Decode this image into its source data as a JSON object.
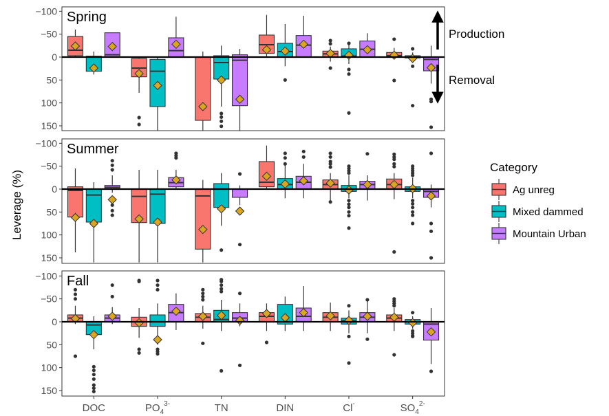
{
  "chart_data": {
    "type": "boxplot",
    "ylabel": "Leverage (%)",
    "y_reversed": true,
    "yticks": [
      -100,
      -50,
      0,
      50,
      100,
      150
    ],
    "ylim": [
      -110,
      160
    ],
    "categories": [
      "DOC",
      "PO",
      "TN",
      "DIN",
      "Cl",
      "SO"
    ],
    "category_labels": [
      {
        "base": "DOC",
        "sub": "",
        "sup": ""
      },
      {
        "base": "PO",
        "sub": "4",
        "sup": "3-"
      },
      {
        "base": "TN",
        "sub": "",
        "sup": ""
      },
      {
        "base": "DIN",
        "sub": "",
        "sup": ""
      },
      {
        "base": "Cl",
        "sub": "",
        "sup": "-"
      },
      {
        "base": "SO",
        "sub": "4",
        "sup": "2-"
      }
    ],
    "legend": {
      "title": "Category",
      "placement": "right",
      "items": [
        {
          "name": "Ag unreg",
          "color": "#F8766D"
        },
        {
          "name": "Mixed dammed",
          "color": "#00BFC4"
        },
        {
          "name": "Mountain Urban",
          "color": "#C77CFF"
        }
      ]
    },
    "annotations": {
      "production": "Production",
      "removal": "Removal"
    },
    "mean_marker_color": "#DAA520",
    "panels": [
      {
        "season": "Spring",
        "boxes": [
          {
            "category": "DOC",
            "group": "Ag unreg",
            "q1": -45,
            "median": -15,
            "q3": -3,
            "whisker_low": -60,
            "whisker_high": 0,
            "mean": -24,
            "outliers": []
          },
          {
            "category": "DOC",
            "group": "Mixed dammed",
            "q1": -2,
            "median": 0,
            "q3": 31,
            "whisker_low": -12,
            "whisker_high": 38,
            "mean": 24,
            "outliers": []
          },
          {
            "category": "DOC",
            "group": "Mountain Urban",
            "q1": -53,
            "median": -5,
            "q3": 0,
            "whisker_low": -53,
            "whisker_high": 0,
            "mean": -23,
            "outliers": []
          },
          {
            "category": "PO",
            "group": "Ag unreg",
            "q1": 3,
            "median": 24,
            "q3": 43,
            "whisker_low": 0,
            "whisker_high": 78,
            "mean": 36,
            "outliers": [
              132,
              147
            ]
          },
          {
            "category": "PO",
            "group": "Mixed dammed",
            "q1": 5,
            "median": 31,
            "q3": 108,
            "whisker_low": 0,
            "whisker_high": 160,
            "mean": 62,
            "outliers": []
          },
          {
            "category": "PO",
            "group": "Mountain Urban",
            "q1": -42,
            "median": -14,
            "q3": 0,
            "whisker_low": -88,
            "whisker_high": 0,
            "mean": -28,
            "outliers": []
          },
          {
            "category": "TN",
            "group": "Ag unreg",
            "q1": 0,
            "median": 0,
            "q3": 138,
            "whisker_low": -12,
            "whisker_high": 160,
            "mean": 108,
            "outliers": []
          },
          {
            "category": "TN",
            "group": "Mixed dammed",
            "q1": -3,
            "median": 12,
            "q3": 48,
            "whisker_low": -25,
            "whisker_high": 108,
            "mean": 50,
            "outliers": [
              123,
              131,
              140,
              151
            ]
          },
          {
            "category": "TN",
            "group": "Mountain Urban",
            "q1": -5,
            "median": 7,
            "q3": 106,
            "whisker_low": -18,
            "whisker_high": 160,
            "mean": 92,
            "outliers": []
          },
          {
            "category": "DIN",
            "group": "Ag unreg",
            "q1": -48,
            "median": -27,
            "q3": -8,
            "whisker_low": -92,
            "whisker_high": 0,
            "mean": -16,
            "outliers": []
          },
          {
            "category": "DIN",
            "group": "Mixed dammed",
            "q1": -30,
            "median": -12,
            "q3": 0,
            "whisker_low": -72,
            "whisker_high": 20,
            "mean": -13,
            "outliers": [
              50
            ]
          },
          {
            "category": "DIN",
            "group": "Mountain Urban",
            "q1": -47,
            "median": -26,
            "q3": 0,
            "whisker_low": -90,
            "whisker_high": 0,
            "mean": -28,
            "outliers": []
          },
          {
            "category": "Cl",
            "group": "Ag unreg",
            "q1": -13,
            "median": -7,
            "q3": 0,
            "whisker_low": -23,
            "whisker_high": 10,
            "mean": -8,
            "outliers": [
              -36,
              -29,
              24
            ]
          },
          {
            "category": "Cl",
            "group": "Mixed dammed",
            "q1": -18,
            "median": -2,
            "q3": 0,
            "whisker_low": -28,
            "whisker_high": 15,
            "mean": -4,
            "outliers": [
              -30,
              27,
              37,
              122
            ]
          },
          {
            "category": "Cl",
            "group": "Mountain Urban",
            "q1": -35,
            "median": -17,
            "q3": 0,
            "whisker_low": -52,
            "whisker_high": 0,
            "mean": -16,
            "outliers": []
          },
          {
            "category": "SO",
            "group": "Ag unreg",
            "q1": -10,
            "median": -3,
            "q3": 0,
            "whisker_low": -20,
            "whisker_high": 5,
            "mean": -4,
            "outliers": [
              -39,
              51
            ]
          },
          {
            "category": "SO",
            "group": "Mixed dammed",
            "q1": -3,
            "median": 0,
            "q3": 2,
            "whisker_low": -10,
            "whisker_high": 12,
            "mean": 3,
            "outliers": [
              -18,
              20,
              106
            ]
          },
          {
            "category": "SO",
            "group": "Mountain Urban",
            "q1": 0,
            "median": 5,
            "q3": 30,
            "whisker_low": -25,
            "whisker_high": 58,
            "mean": 23,
            "outliers": [
              92,
              97,
              153
            ]
          }
        ]
      },
      {
        "season": "Summer",
        "boxes": [
          {
            "category": "DOC",
            "group": "Ag unreg",
            "q1": -5,
            "median": 3,
            "q3": 61,
            "whisker_low": -45,
            "whisker_high": 138,
            "mean": 62,
            "outliers": []
          },
          {
            "category": "DOC",
            "group": "Mixed dammed",
            "q1": 0,
            "median": 13,
            "q3": 72,
            "whisker_low": -15,
            "whisker_high": 160,
            "mean": 75,
            "outliers": []
          },
          {
            "category": "DOC",
            "group": "Mountain Urban",
            "q1": -8,
            "median": -4,
            "q3": 0,
            "whisker_low": -30,
            "whisker_high": 8,
            "mean": 23,
            "outliers": [
              -62,
              -52,
              -42,
              25,
              35,
              47,
              57
            ]
          },
          {
            "category": "PO",
            "group": "Ag unreg",
            "q1": 0,
            "median": 16,
            "q3": 73,
            "whisker_low": -42,
            "whisker_high": 160,
            "mean": 65,
            "outliers": []
          },
          {
            "category": "PO",
            "group": "Mixed dammed",
            "q1": 0,
            "median": 11,
            "q3": 75,
            "whisker_low": -42,
            "whisker_high": 160,
            "mean": 72,
            "outliers": []
          },
          {
            "category": "PO",
            "group": "Mountain Urban",
            "q1": -25,
            "median": -14,
            "q3": -5,
            "whisker_low": -42,
            "whisker_high": 0,
            "mean": -20,
            "outliers": [
              -78,
              -73,
              -68
            ]
          },
          {
            "category": "TN",
            "group": "Ag unreg",
            "q1": 0,
            "median": 15,
            "q3": 131,
            "whisker_low": -20,
            "whisker_high": 160,
            "mean": 88,
            "outliers": []
          },
          {
            "category": "TN",
            "group": "Mixed dammed",
            "q1": -12,
            "median": 0,
            "q3": 40,
            "whisker_low": -35,
            "whisker_high": 80,
            "mean": 43,
            "outliers": [
              133
            ]
          },
          {
            "category": "TN",
            "group": "Mountain Urban",
            "q1": 0,
            "median": 0,
            "q3": 18,
            "whisker_low": -8,
            "whisker_high": 35,
            "mean": 48,
            "outliers": [
              -33,
              121
            ]
          },
          {
            "category": "DIN",
            "group": "Ag unreg",
            "q1": -60,
            "median": -15,
            "q3": -5,
            "whisker_low": -95,
            "whisker_high": 0,
            "mean": -28,
            "outliers": []
          },
          {
            "category": "DIN",
            "group": "Mixed dammed",
            "q1": -23,
            "median": -10,
            "q3": 0,
            "whisker_low": -55,
            "whisker_high": 20,
            "mean": -11,
            "outliers": [
              -78,
              -68,
              -55
            ]
          },
          {
            "category": "DIN",
            "group": "Mountain Urban",
            "q1": -28,
            "median": -15,
            "q3": 0,
            "whisker_low": -55,
            "whisker_high": 20,
            "mean": -18,
            "outliers": [
              -82,
              -70
            ]
          },
          {
            "category": "Cl",
            "group": "Ag unreg",
            "q1": -20,
            "median": -10,
            "q3": 0,
            "whisker_low": -35,
            "whisker_high": 25,
            "mean": -13,
            "outliers": [
              -78,
              -70,
              -60,
              -55,
              -48,
              28
            ]
          },
          {
            "category": "Cl",
            "group": "Mixed dammed",
            "q1": -8,
            "median": 0,
            "q3": 5,
            "whisker_low": -30,
            "whisker_high": 20,
            "mean": 2,
            "outliers": [
              -50,
              -45,
              -40,
              -35,
              25,
              33,
              40,
              50,
              58,
              85
            ]
          },
          {
            "category": "Cl",
            "group": "Mountain Urban",
            "q1": -17,
            "median": -10,
            "q3": 0,
            "whisker_low": -30,
            "whisker_high": 25,
            "mean": -10,
            "outliers": [
              -77
            ]
          },
          {
            "category": "SO",
            "group": "Ag unreg",
            "q1": -22,
            "median": -10,
            "q3": 0,
            "whisker_low": -35,
            "whisker_high": 22,
            "mean": -10,
            "outliers": [
              -76,
              -70,
              -65,
              -55,
              -49,
              137
            ]
          },
          {
            "category": "SO",
            "group": "Mixed dammed",
            "q1": -5,
            "median": 0,
            "q3": 5,
            "whisker_low": -25,
            "whisker_high": 20,
            "mean": -1,
            "outliers": [
              -50,
              -45,
              -40,
              -35,
              -30,
              25,
              32,
              40,
              50,
              57,
              75
            ]
          },
          {
            "category": "SO",
            "group": "Mountain Urban",
            "q1": 0,
            "median": 5,
            "q3": 18,
            "whisker_low": -10,
            "whisker_high": 40,
            "mean": 15,
            "outliers": [
              -78,
              75,
              92,
              150
            ]
          }
        ]
      },
      {
        "season": "Fall",
        "boxes": [
          {
            "category": "DOC",
            "group": "Ag unreg",
            "q1": -15,
            "median": -8,
            "q3": 0,
            "whisker_low": -35,
            "whisker_high": 5,
            "mean": -7,
            "outliers": [
              -70,
              -60,
              -50,
              75
            ]
          },
          {
            "category": "DOC",
            "group": "Mixed dammed",
            "q1": 0,
            "median": 7,
            "q3": 28,
            "whisker_low": -12,
            "whisker_high": 60,
            "mean": 28,
            "outliers": [
              98,
              106,
              115,
              125,
              138,
              145,
              152
            ]
          },
          {
            "category": "DOC",
            "group": "Mountain Urban",
            "q1": -15,
            "median": -8,
            "q3": 0,
            "whisker_low": -32,
            "whisker_high": 5,
            "mean": -12,
            "outliers": [
              -80,
              -55
            ]
          },
          {
            "category": "PO",
            "group": "Ag unreg",
            "q1": -10,
            "median": 0,
            "q3": 10,
            "whisker_low": -30,
            "whisker_high": 35,
            "mean": 2,
            "outliers": [
              -90,
              -88,
              60,
              68
            ]
          },
          {
            "category": "PO",
            "group": "Mixed dammed",
            "q1": -15,
            "median": 0,
            "q3": 10,
            "whisker_low": -40,
            "whisker_high": 50,
            "mean": 39,
            "outliers": [
              -90,
              -80,
              -70,
              60,
              65,
              70
            ]
          },
          {
            "category": "PO",
            "group": "Mountain Urban",
            "q1": -38,
            "median": -20,
            "q3": 0,
            "whisker_low": -62,
            "whisker_high": 18,
            "mean": -23,
            "outliers": []
          },
          {
            "category": "TN",
            "group": "Ag unreg",
            "q1": -18,
            "median": -10,
            "q3": 0,
            "whisker_low": -35,
            "whisker_high": 15,
            "mean": -12,
            "outliers": [
              -70,
              -62,
              -55,
              -48,
              47
            ]
          },
          {
            "category": "TN",
            "group": "Mixed dammed",
            "q1": -25,
            "median": -5,
            "q3": 0,
            "whisker_low": -48,
            "whisker_high": 20,
            "mean": -14,
            "outliers": [
              -92,
              -88,
              -80,
              -72,
              -66,
              107
            ]
          },
          {
            "category": "TN",
            "group": "Mountain Urban",
            "q1": -20,
            "median": -8,
            "q3": 0,
            "whisker_low": -40,
            "whisker_high": 10,
            "mean": -3,
            "outliers": [
              -62,
              95
            ]
          },
          {
            "category": "DIN",
            "group": "Ag unreg",
            "q1": -20,
            "median": -12,
            "q3": 0,
            "whisker_low": -40,
            "whisker_high": 20,
            "mean": -18,
            "outliers": [
              45
            ]
          },
          {
            "category": "DIN",
            "group": "Mixed dammed",
            "q1": -38,
            "median": 0,
            "q3": 5,
            "whisker_low": -55,
            "whisker_high": 20,
            "mean": -9,
            "outliers": []
          },
          {
            "category": "DIN",
            "group": "Mountain Urban",
            "q1": -30,
            "median": -12,
            "q3": 0,
            "whisker_low": -78,
            "whisker_high": 20,
            "mean": -20,
            "outliers": []
          },
          {
            "category": "Cl",
            "group": "Ag unreg",
            "q1": -20,
            "median": -10,
            "q3": 0,
            "whisker_low": -42,
            "whisker_high": 20,
            "mean": -13,
            "outliers": []
          },
          {
            "category": "Cl",
            "group": "Mixed dammed",
            "q1": -8,
            "median": -2,
            "q3": 5,
            "whisker_low": -25,
            "whisker_high": 25,
            "mean": -3,
            "outliers": [
              -35,
              32,
              90
            ]
          },
          {
            "category": "Cl",
            "group": "Mountain Urban",
            "q1": -20,
            "median": -10,
            "q3": 0,
            "whisker_low": -48,
            "whisker_high": 25,
            "mean": -12,
            "outliers": [
              -48,
              38
            ]
          },
          {
            "category": "SO",
            "group": "Ag unreg",
            "q1": -15,
            "median": -8,
            "q3": 0,
            "whisker_low": -30,
            "whisker_high": 20,
            "mean": -10,
            "outliers": [
              -50,
              -45,
              -40,
              -35,
              72
            ]
          },
          {
            "category": "SO",
            "group": "Mixed dammed",
            "q1": -5,
            "median": 0,
            "q3": 5,
            "whisker_low": -12,
            "whisker_high": 15,
            "mean": 2,
            "outliers": [
              -20,
              20,
              25,
              30,
              32
            ]
          },
          {
            "category": "SO",
            "group": "Mountain Urban",
            "q1": 0,
            "median": 5,
            "q3": 40,
            "whisker_low": -30,
            "whisker_high": 92,
            "mean": 22,
            "outliers": [
              108
            ]
          }
        ]
      }
    ]
  }
}
